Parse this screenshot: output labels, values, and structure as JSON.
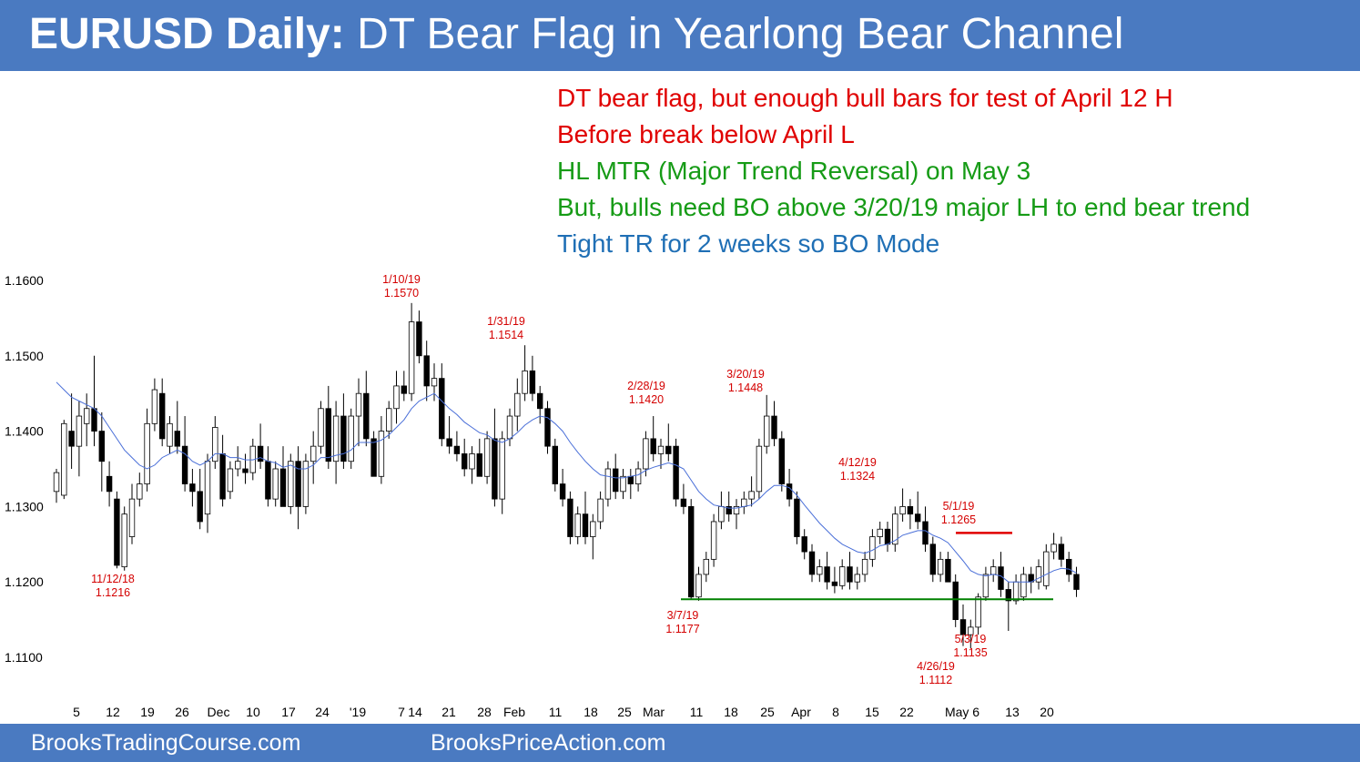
{
  "header": {
    "title_bold": "EURUSD Daily:",
    "title_rest": "DT Bear Flag in Yearlong Bear Channel"
  },
  "notes": [
    {
      "text": "DT bear flag, but enough bull bars for test of April 12 H",
      "color": "#e00000"
    },
    {
      "text": "Before break below April L",
      "color": "#e00000"
    },
    {
      "text": "HL MTR (Major Trend Reversal) on May 3",
      "color": "#169b16"
    },
    {
      "text": "But, bulls need BO above 3/20/19 major LH to end bear trend",
      "color": "#169b16"
    },
    {
      "text": "Tight TR for 2 weeks so BO Mode",
      "color": "#1f6fb5"
    }
  ],
  "footer": {
    "left": "BrooksTradingCourse.com",
    "center": "BrooksPriceAction.com"
  },
  "chart_data": {
    "type": "candlestick",
    "title": "",
    "ylim": [
      1.1075,
      1.161
    ],
    "y_ticks": [
      "1.1600",
      "1.1500",
      "1.1400",
      "1.1300",
      "1.1200",
      "1.1100"
    ],
    "x_ticks": [
      "5",
      "12",
      "19",
      "26",
      "Dec",
      "10",
      "17",
      "24",
      "'19",
      "7",
      "14",
      "21",
      "28",
      "Feb",
      "11",
      "18",
      "25",
      "Mar",
      "11",
      "18",
      "25",
      "Apr",
      "8",
      "15",
      "22",
      "May 6",
      "13",
      "20"
    ],
    "colors": {
      "bull_body": "#ffffff",
      "bear_body": "#000000",
      "wick": "#000000",
      "ema": "#4a6fd8",
      "annotation": "#d40000",
      "support_line": "#008000",
      "resistance_line": "#e00000"
    },
    "annotations": [
      {
        "date": "11/12/18",
        "value": "1.1216",
        "position": "below"
      },
      {
        "date": "1/10/19",
        "value": "1.1570",
        "position": "above"
      },
      {
        "date": "1/31/19",
        "value": "1.1514",
        "position": "above"
      },
      {
        "date": "2/28/19",
        "value": "1.1420",
        "position": "above"
      },
      {
        "date": "3/7/19",
        "value": "1.1177",
        "position": "below"
      },
      {
        "date": "3/20/19",
        "value": "1.1448",
        "position": "above"
      },
      {
        "date": "4/12/19",
        "value": "1.1324",
        "position": "above"
      },
      {
        "date": "4/26/19",
        "value": "1.1112",
        "position": "below"
      },
      {
        "date": "5/1/19",
        "value": "1.1265",
        "position": "above"
      },
      {
        "date": "5/3/19",
        "value": "1.1135",
        "position": "below"
      }
    ],
    "support_level": 1.1177,
    "resistance_level": 1.1265,
    "candles": [
      [
        1.132,
        1.135,
        1.1305,
        1.1345
      ],
      [
        1.1315,
        1.1415,
        1.131,
        1.141
      ],
      [
        1.14,
        1.145,
        1.135,
        1.138
      ],
      [
        1.138,
        1.144,
        1.134,
        1.142
      ],
      [
        1.141,
        1.145,
        1.138,
        1.143
      ],
      [
        1.143,
        1.15,
        1.138,
        1.14
      ],
      [
        1.14,
        1.1425,
        1.132,
        1.136
      ],
      [
        1.134,
        1.136,
        1.13,
        1.132
      ],
      [
        1.131,
        1.132,
        1.1218,
        1.1222
      ],
      [
        1.122,
        1.13,
        1.1215,
        1.129
      ],
      [
        1.126,
        1.133,
        1.125,
        1.131
      ],
      [
        1.131,
        1.1345,
        1.13,
        1.133
      ],
      [
        1.133,
        1.143,
        1.132,
        1.141
      ],
      [
        1.141,
        1.147,
        1.14,
        1.1455
      ],
      [
        1.145,
        1.147,
        1.138,
        1.139
      ],
      [
        1.138,
        1.142,
        1.137,
        1.141
      ],
      [
        1.14,
        1.144,
        1.137,
        1.138
      ],
      [
        1.138,
        1.142,
        1.132,
        1.133
      ],
      [
        1.133,
        1.135,
        1.13,
        1.132
      ],
      [
        1.132,
        1.135,
        1.127,
        1.128
      ],
      [
        1.129,
        1.137,
        1.1265,
        1.136
      ],
      [
        1.136,
        1.142,
        1.135,
        1.1405
      ],
      [
        1.137,
        1.1395,
        1.13,
        1.131
      ],
      [
        1.132,
        1.136,
        1.131,
        1.135
      ],
      [
        1.135,
        1.138,
        1.134,
        1.136
      ],
      [
        1.135,
        1.137,
        1.133,
        1.1345
      ],
      [
        1.1345,
        1.139,
        1.1335,
        1.138
      ],
      [
        1.138,
        1.141,
        1.135,
        1.136
      ],
      [
        1.136,
        1.138,
        1.13,
        1.131
      ],
      [
        1.131,
        1.136,
        1.13,
        1.135
      ],
      [
        1.135,
        1.138,
        1.13,
        1.13
      ],
      [
        1.13,
        1.137,
        1.129,
        1.136
      ],
      [
        1.136,
        1.138,
        1.127,
        1.13
      ],
      [
        1.13,
        1.137,
        1.129,
        1.136
      ],
      [
        1.136,
        1.14,
        1.133,
        1.138
      ],
      [
        1.138,
        1.144,
        1.137,
        1.143
      ],
      [
        1.143,
        1.146,
        1.135,
        1.136
      ],
      [
        1.136,
        1.144,
        1.133,
        1.142
      ],
      [
        1.142,
        1.145,
        1.135,
        1.136
      ],
      [
        1.136,
        1.143,
        1.135,
        1.142
      ],
      [
        1.142,
        1.147,
        1.138,
        1.145
      ],
      [
        1.145,
        1.148,
        1.138,
        1.139
      ],
      [
        1.139,
        1.14,
        1.134,
        1.134
      ],
      [
        1.134,
        1.142,
        1.133,
        1.14
      ],
      [
        1.14,
        1.144,
        1.139,
        1.143
      ],
      [
        1.143,
        1.148,
        1.141,
        1.146
      ],
      [
        1.146,
        1.148,
        1.144,
        1.145
      ],
      [
        1.145,
        1.157,
        1.144,
        1.1545
      ],
      [
        1.1545,
        1.156,
        1.149,
        1.15
      ],
      [
        1.15,
        1.152,
        1.144,
        1.146
      ],
      [
        1.146,
        1.149,
        1.144,
        1.147
      ],
      [
        1.147,
        1.149,
        1.138,
        1.139
      ],
      [
        1.139,
        1.142,
        1.137,
        1.138
      ],
      [
        1.138,
        1.14,
        1.136,
        1.137
      ],
      [
        1.137,
        1.139,
        1.134,
        1.135
      ],
      [
        1.135,
        1.138,
        1.133,
        1.137
      ],
      [
        1.137,
        1.139,
        1.134,
        1.134
      ],
      [
        1.134,
        1.14,
        1.133,
        1.139
      ],
      [
        1.139,
        1.143,
        1.13,
        1.131
      ],
      [
        1.131,
        1.14,
        1.129,
        1.139
      ],
      [
        1.139,
        1.143,
        1.138,
        1.142
      ],
      [
        1.142,
        1.147,
        1.14,
        1.145
      ],
      [
        1.145,
        1.1514,
        1.144,
        1.148
      ],
      [
        1.148,
        1.15,
        1.144,
        1.145
      ],
      [
        1.145,
        1.146,
        1.141,
        1.143
      ],
      [
        1.143,
        1.144,
        1.137,
        1.138
      ],
      [
        1.138,
        1.139,
        1.132,
        1.133
      ],
      [
        1.133,
        1.135,
        1.13,
        1.131
      ],
      [
        1.131,
        1.132,
        1.125,
        1.126
      ],
      [
        1.126,
        1.13,
        1.125,
        1.129
      ],
      [
        1.129,
        1.132,
        1.125,
        1.126
      ],
      [
        1.126,
        1.129,
        1.123,
        1.128
      ],
      [
        1.128,
        1.132,
        1.127,
        1.131
      ],
      [
        1.131,
        1.136,
        1.13,
        1.135
      ],
      [
        1.135,
        1.137,
        1.131,
        1.132
      ],
      [
        1.132,
        1.135,
        1.131,
        1.134
      ],
      [
        1.134,
        1.135,
        1.131,
        1.133
      ],
      [
        1.133,
        1.136,
        1.132,
        1.135
      ],
      [
        1.135,
        1.14,
        1.134,
        1.139
      ],
      [
        1.139,
        1.142,
        1.136,
        1.137
      ],
      [
        1.137,
        1.139,
        1.135,
        1.138
      ],
      [
        1.138,
        1.141,
        1.136,
        1.137
      ],
      [
        1.138,
        1.139,
        1.13,
        1.131
      ],
      [
        1.131,
        1.133,
        1.129,
        1.13
      ],
      [
        1.13,
        1.131,
        1.1177,
        1.118
      ],
      [
        1.118,
        1.122,
        1.1175,
        1.121
      ],
      [
        1.121,
        1.124,
        1.12,
        1.123
      ],
      [
        1.123,
        1.129,
        1.122,
        1.128
      ],
      [
        1.128,
        1.132,
        1.127,
        1.13
      ],
      [
        1.13,
        1.132,
        1.128,
        1.129
      ],
      [
        1.129,
        1.131,
        1.127,
        1.13
      ],
      [
        1.13,
        1.132,
        1.129,
        1.131
      ],
      [
        1.131,
        1.134,
        1.13,
        1.132
      ],
      [
        1.132,
        1.139,
        1.131,
        1.138
      ],
      [
        1.138,
        1.1448,
        1.137,
        1.142
      ],
      [
        1.142,
        1.144,
        1.138,
        1.139
      ],
      [
        1.139,
        1.14,
        1.132,
        1.133
      ],
      [
        1.133,
        1.135,
        1.13,
        1.131
      ],
      [
        1.131,
        1.132,
        1.125,
        1.126
      ],
      [
        1.126,
        1.127,
        1.123,
        1.124
      ],
      [
        1.124,
        1.125,
        1.12,
        1.121
      ],
      [
        1.121,
        1.123,
        1.12,
        1.122
      ],
      [
        1.122,
        1.124,
        1.119,
        1.12
      ],
      [
        1.12,
        1.122,
        1.1185,
        1.1195
      ],
      [
        1.1195,
        1.123,
        1.119,
        1.122
      ],
      [
        1.122,
        1.124,
        1.119,
        1.12
      ],
      [
        1.12,
        1.122,
        1.119,
        1.121
      ],
      [
        1.121,
        1.124,
        1.12,
        1.123
      ],
      [
        1.123,
        1.127,
        1.122,
        1.126
      ],
      [
        1.126,
        1.128,
        1.125,
        1.127
      ],
      [
        1.127,
        1.128,
        1.124,
        1.125
      ],
      [
        1.125,
        1.13,
        1.124,
        1.129
      ],
      [
        1.129,
        1.1324,
        1.128,
        1.13
      ],
      [
        1.13,
        1.131,
        1.127,
        1.129
      ],
      [
        1.129,
        1.132,
        1.127,
        1.128
      ],
      [
        1.128,
        1.13,
        1.124,
        1.125
      ],
      [
        1.125,
        1.126,
        1.12,
        1.121
      ],
      [
        1.121,
        1.124,
        1.12,
        1.123
      ],
      [
        1.123,
        1.124,
        1.12,
        1.12
      ],
      [
        1.12,
        1.121,
        1.114,
        1.115
      ],
      [
        1.115,
        1.117,
        1.1115,
        1.113
      ],
      [
        1.113,
        1.115,
        1.1112,
        1.114
      ],
      [
        1.114,
        1.1185,
        1.113,
        1.118
      ],
      [
        1.118,
        1.122,
        1.1175,
        1.121
      ],
      [
        1.121,
        1.123,
        1.12,
        1.122
      ],
      [
        1.122,
        1.124,
        1.118,
        1.119
      ],
      [
        1.119,
        1.12,
        1.1135,
        1.1175
      ],
      [
        1.1175,
        1.121,
        1.117,
        1.12
      ],
      [
        1.118,
        1.122,
        1.1175,
        1.121
      ],
      [
        1.121,
        1.122,
        1.1185,
        1.12
      ],
      [
        1.12,
        1.123,
        1.119,
        1.122
      ],
      [
        1.1195,
        1.125,
        1.119,
        1.124
      ],
      [
        1.124,
        1.1265,
        1.123,
        1.125
      ],
      [
        1.125,
        1.126,
        1.122,
        1.123
      ],
      [
        1.123,
        1.124,
        1.12,
        1.121
      ],
      [
        1.121,
        1.122,
        1.118,
        1.119
      ]
    ],
    "ema": [
      1.1465,
      1.1455,
      1.1445,
      1.144,
      1.1435,
      1.143,
      1.142,
      1.1405,
      1.139,
      1.1375,
      1.1365,
      1.1355,
      1.135,
      1.1355,
      1.1365,
      1.137,
      1.1375,
      1.137,
      1.136,
      1.1355,
      1.136,
      1.137,
      1.137,
      1.1365,
      1.1365,
      1.1362,
      1.1362,
      1.1365,
      1.136,
      1.1358,
      1.1352,
      1.1355,
      1.135,
      1.135,
      1.1355,
      1.1365,
      1.1365,
      1.1368,
      1.137,
      1.1375,
      1.1385,
      1.1385,
      1.1385,
      1.1388,
      1.1395,
      1.1405,
      1.1415,
      1.143,
      1.144,
      1.1445,
      1.145,
      1.144,
      1.143,
      1.1422,
      1.1412,
      1.1405,
      1.1398,
      1.1395,
      1.1388,
      1.1385,
      1.139,
      1.1398,
      1.1408,
      1.1415,
      1.142,
      1.1418,
      1.141,
      1.14,
      1.1385,
      1.1372,
      1.136,
      1.135,
      1.1342,
      1.134,
      1.1338,
      1.1338,
      1.134,
      1.1342,
      1.1348,
      1.1352,
      1.1355,
      1.1358,
      1.1355,
      1.135,
      1.1335,
      1.132,
      1.131,
      1.1302,
      1.13,
      1.1298,
      1.1298,
      1.13,
      1.1302,
      1.131,
      1.132,
      1.1328,
      1.1328,
      1.1325,
      1.1315,
      1.1302,
      1.129,
      1.1278,
      1.1268,
      1.1258,
      1.125,
      1.1245,
      1.124,
      1.1238,
      1.1242,
      1.1248,
      1.125,
      1.1255,
      1.1262,
      1.1265,
      1.1268,
      1.1268,
      1.1262,
      1.1258,
      1.1252,
      1.124,
      1.1228,
      1.1215,
      1.121,
      1.1208,
      1.121,
      1.1208,
      1.12,
      1.12,
      1.12,
      1.12,
      1.1205,
      1.121,
      1.1215,
      1.1218,
      1.1217,
      1.1212
    ]
  }
}
